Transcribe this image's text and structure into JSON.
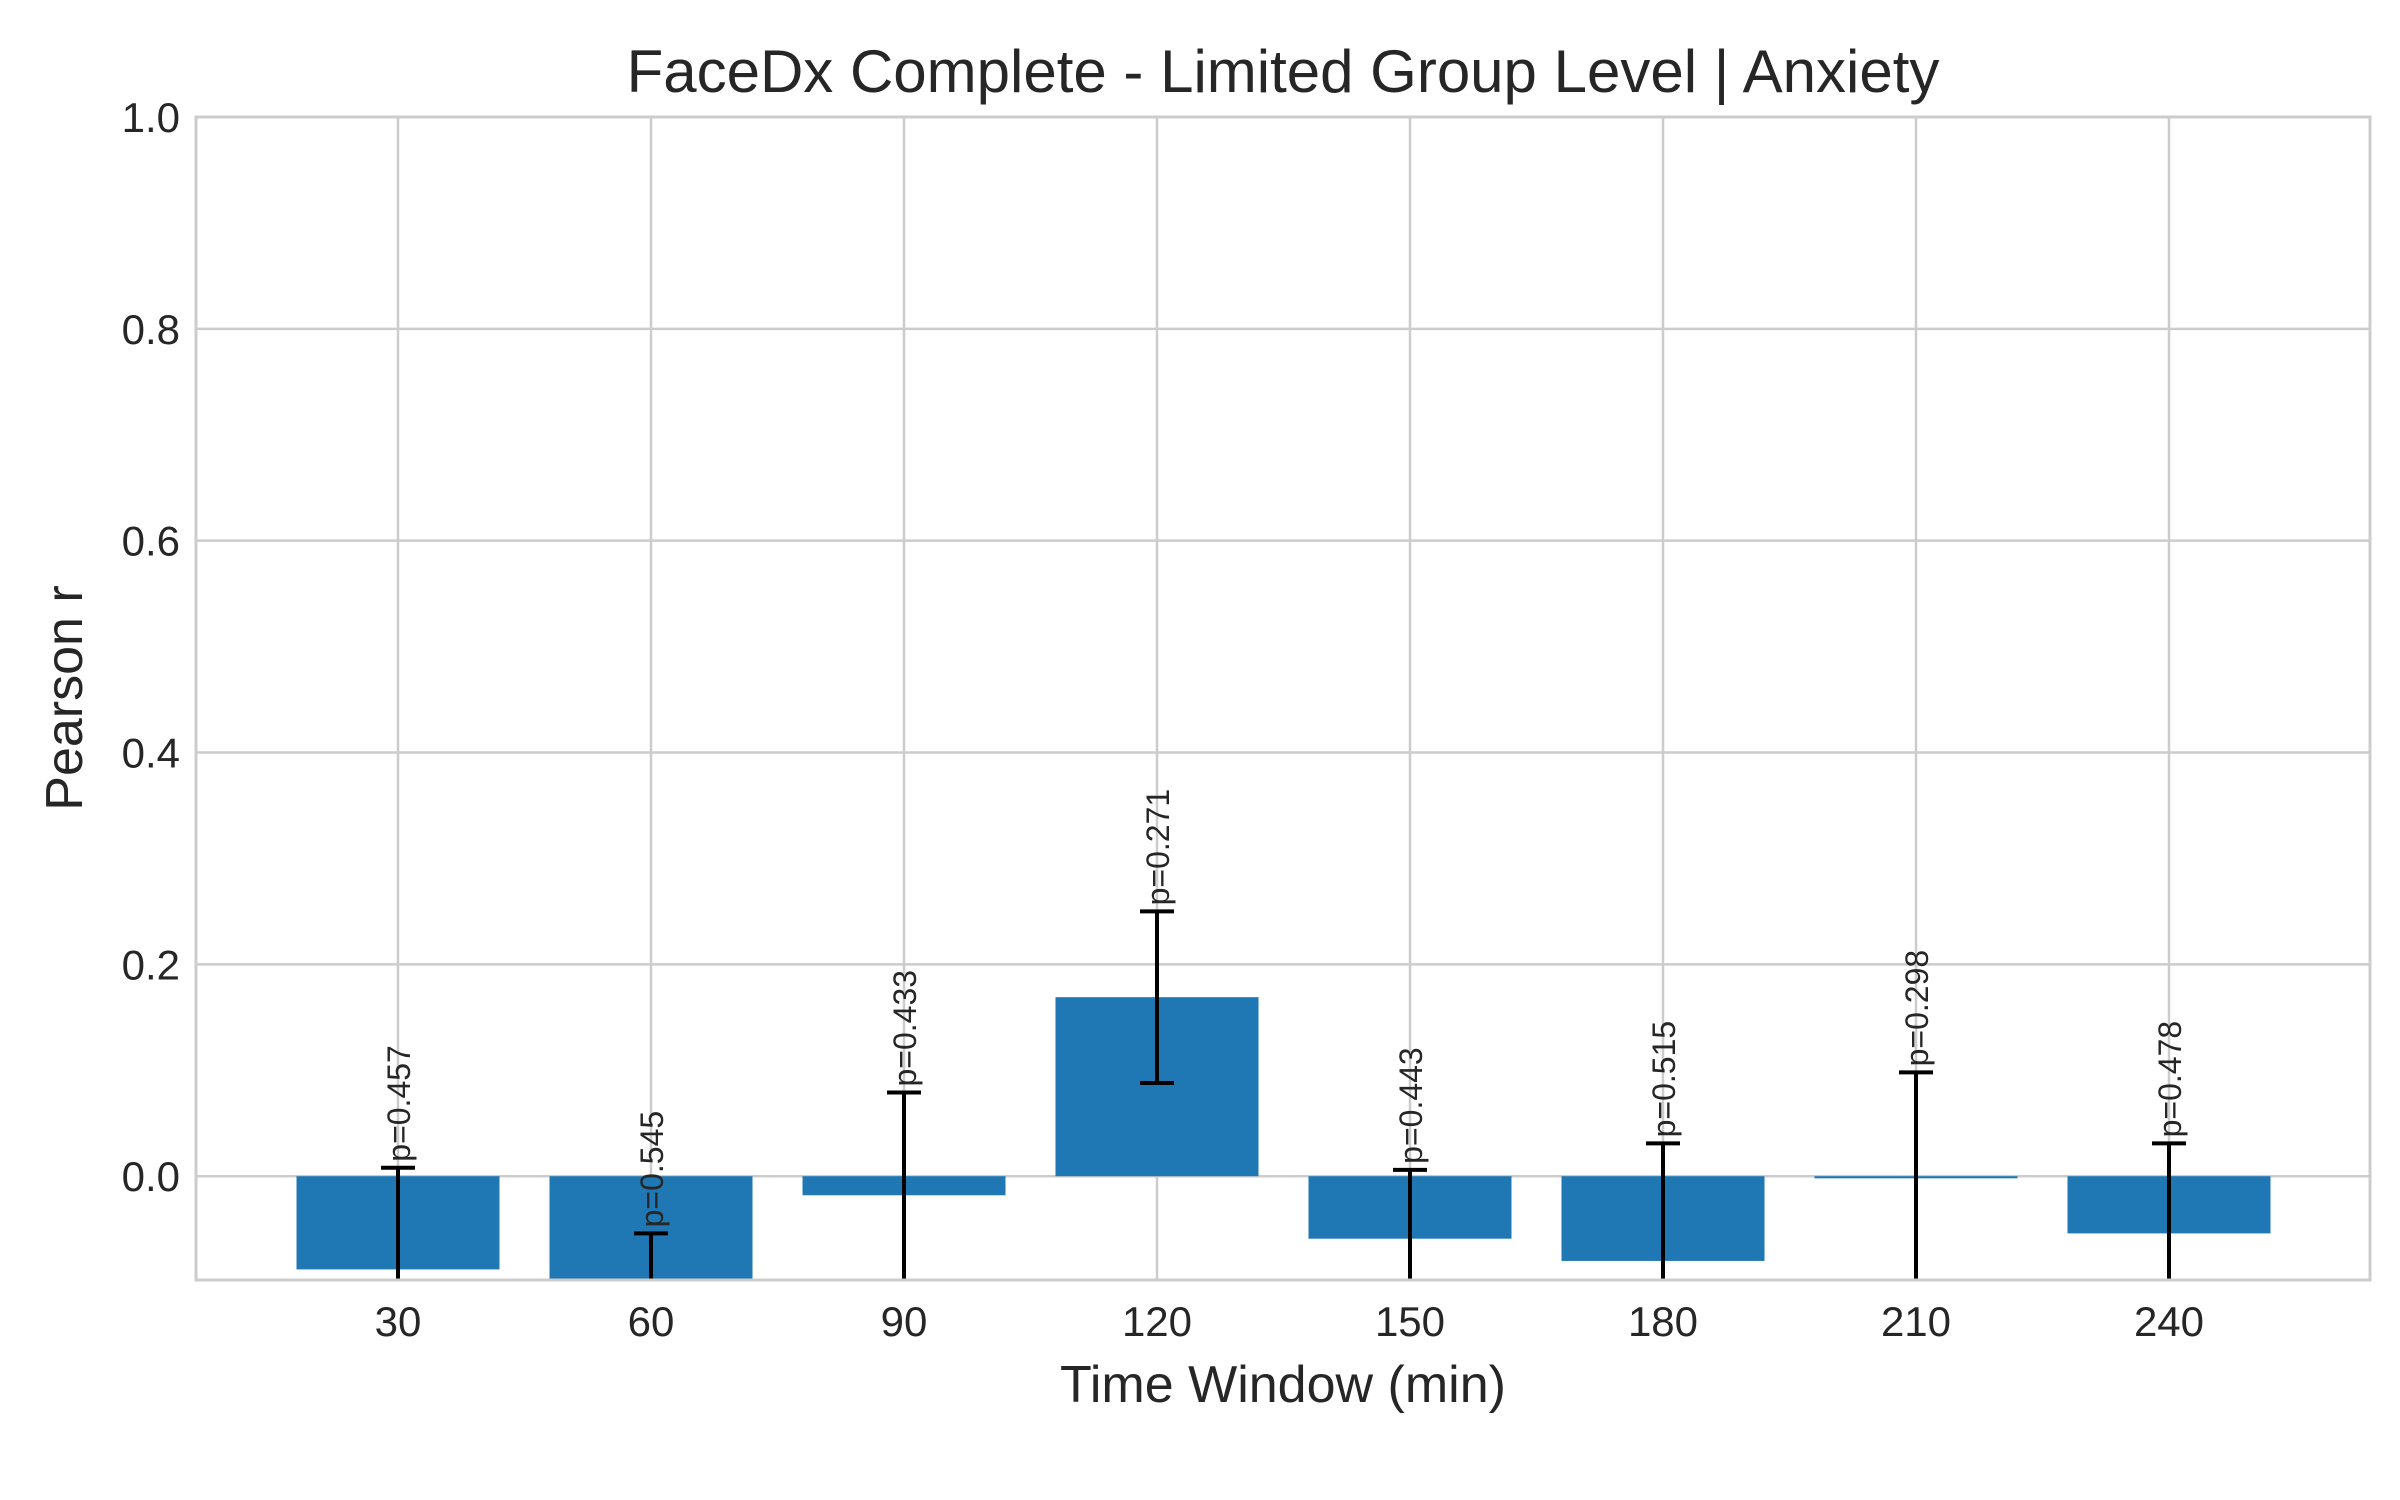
{
  "chart_data": {
    "type": "bar",
    "title": "FaceDx Complete - Limited Group Level | Anxiety",
    "xlabel": "Time Window (min)",
    "ylabel": "Pearson r",
    "categories": [
      "30",
      "60",
      "90",
      "120",
      "150",
      "180",
      "210",
      "240"
    ],
    "values": [
      -0.088,
      -0.098,
      -0.018,
      0.169,
      -0.059,
      -0.08,
      -0.002,
      -0.054
    ],
    "error_low": [
      -0.12,
      -0.125,
      -0.125,
      0.088,
      -0.12,
      -0.12,
      -0.12,
      -0.12
    ],
    "error_high": [
      0.008,
      -0.054,
      0.079,
      0.25,
      0.006,
      0.031,
      0.098,
      0.031
    ],
    "p_labels": [
      "p=0.457",
      "p=0.545",
      "p=0.433",
      "p=0.271",
      "p=0.443",
      "p=0.515",
      "p=0.298",
      "p=0.478"
    ],
    "yticks": [
      "0.0",
      "0.2",
      "0.4",
      "0.6",
      "0.8",
      "1.0"
    ],
    "ylim": [
      -0.098,
      1.0
    ],
    "grid": true,
    "bar_color": "#1f77b4"
  }
}
